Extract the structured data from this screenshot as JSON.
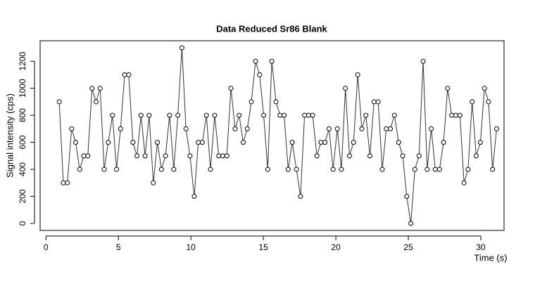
{
  "chart_data": {
    "type": "line",
    "title": "Data Reduced Sr86 Blank",
    "x_label": "Time (s)",
    "y_label": "Signal intensity (cps)",
    "x": [
      0.92,
      1.2,
      1.48,
      1.77,
      2.05,
      2.33,
      2.61,
      2.89,
      3.18,
      3.46,
      3.74,
      4.02,
      4.3,
      4.59,
      4.87,
      5.15,
      5.43,
      5.71,
      6.0,
      6.28,
      6.56,
      6.84,
      7.12,
      7.41,
      7.69,
      7.97,
      8.25,
      8.53,
      8.82,
      9.1,
      9.38,
      9.66,
      9.94,
      10.23,
      10.51,
      10.79,
      11.07,
      11.35,
      11.64,
      11.92,
      12.2,
      12.48,
      12.76,
      13.05,
      13.33,
      13.61,
      13.89,
      14.17,
      14.46,
      14.74,
      15.02,
      15.3,
      15.58,
      15.87,
      16.15,
      16.43,
      16.71,
      16.99,
      17.28,
      17.56,
      17.84,
      18.12,
      18.4,
      18.69,
      18.97,
      19.25,
      19.53,
      19.81,
      20.1,
      20.38,
      20.66,
      20.94,
      21.22,
      21.51,
      21.79,
      22.07,
      22.35,
      22.63,
      22.92,
      23.2,
      23.48,
      23.76,
      24.04,
      24.33,
      24.61,
      24.89,
      25.17,
      25.45,
      25.74,
      26.02,
      26.3,
      26.58,
      26.86,
      27.15,
      27.43,
      27.71,
      27.99,
      28.27,
      28.56,
      28.84,
      29.12,
      29.4,
      29.68,
      29.97,
      30.25,
      30.53,
      30.81,
      31.09
    ],
    "values": [
      900,
      300,
      300,
      700,
      600,
      400,
      500,
      500,
      1000,
      900,
      1000,
      400,
      600,
      800,
      400,
      700,
      1100,
      1100,
      600,
      500,
      800,
      500,
      800,
      300,
      600,
      400,
      500,
      800,
      400,
      800,
      1300,
      700,
      500,
      200,
      600,
      600,
      800,
      400,
      800,
      500,
      500,
      500,
      1000,
      700,
      800,
      600,
      700,
      900,
      1200,
      1100,
      800,
      400,
      1200,
      900,
      800,
      800,
      400,
      600,
      400,
      200,
      800,
      800,
      800,
      500,
      600,
      600,
      700,
      400,
      700,
      400,
      1000,
      500,
      600,
      1100,
      700,
      800,
      500,
      900,
      900,
      400,
      700,
      700,
      800,
      600,
      500,
      200,
      0,
      400,
      500,
      1200,
      400,
      700,
      400,
      400,
      600,
      1000,
      800,
      800,
      800,
      300,
      400,
      900,
      500,
      600,
      1000,
      900,
      400,
      700
    ],
    "color": "#333333",
    "xlim": [
      -0.4,
      31.6
    ],
    "ylim": [
      -52,
      1352
    ],
    "xticks": [
      0,
      5,
      10,
      15,
      20,
      25,
      30
    ],
    "yticks": [
      0,
      200,
      400,
      600,
      800,
      1000,
      1200
    ]
  }
}
